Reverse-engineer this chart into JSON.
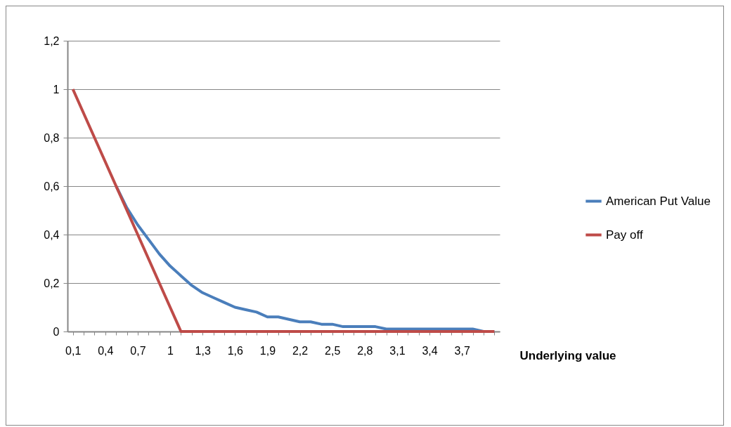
{
  "chart_data": {
    "type": "line",
    "xlabel": "Underlying value",
    "categories": [
      "0,1",
      null,
      null,
      "0,4",
      null,
      null,
      "0,7",
      null,
      null,
      "1",
      null,
      null,
      "1,3",
      null,
      null,
      "1,6",
      null,
      null,
      "1,9",
      null,
      null,
      "2,2",
      null,
      null,
      "2,5",
      null,
      null,
      "2,8",
      null,
      null,
      "3,1",
      null,
      null,
      "3,4",
      null,
      null,
      "3,7",
      null,
      null,
      null
    ],
    "series": [
      {
        "name": "American Put Value",
        "color": "#4a7ebb",
        "values": [
          null,
          null,
          null,
          null,
          0.6,
          0.51,
          0.44,
          0.38,
          0.32,
          0.27,
          0.23,
          0.19,
          0.16,
          0.14,
          0.12,
          0.1,
          0.09,
          0.08,
          0.06,
          0.06,
          0.05,
          0.04,
          0.04,
          0.03,
          0.03,
          0.02,
          0.02,
          0.02,
          0.02,
          0.01,
          0.01,
          0.01,
          0.01,
          0.01,
          0.01,
          0.01,
          0.01,
          0.01,
          0,
          0
        ]
      },
      {
        "name": "Pay off",
        "color": "#be4b48",
        "values": [
          1,
          0.9,
          0.8,
          0.7,
          0.6,
          0.5,
          0.4,
          0.3,
          0.2,
          0.1,
          0,
          0,
          0,
          0,
          0,
          0,
          0,
          0,
          0,
          0,
          0,
          0,
          0,
          0,
          0,
          0,
          0,
          0,
          0,
          0,
          0,
          0,
          0,
          0,
          0,
          0,
          0,
          0,
          0,
          0
        ]
      }
    ],
    "ylim": [
      0,
      1.2
    ],
    "yticks": [
      0,
      {
        "value": 0.2,
        "label": "0,2"
      },
      {
        "value": 0.4,
        "label": "0,4"
      },
      {
        "value": 0.6,
        "label": "0,6"
      },
      {
        "value": 0.8,
        "label": "0,8"
      },
      1,
      {
        "value": 1.2,
        "label": "1,2"
      }
    ],
    "grid": "y",
    "legend": "right"
  }
}
